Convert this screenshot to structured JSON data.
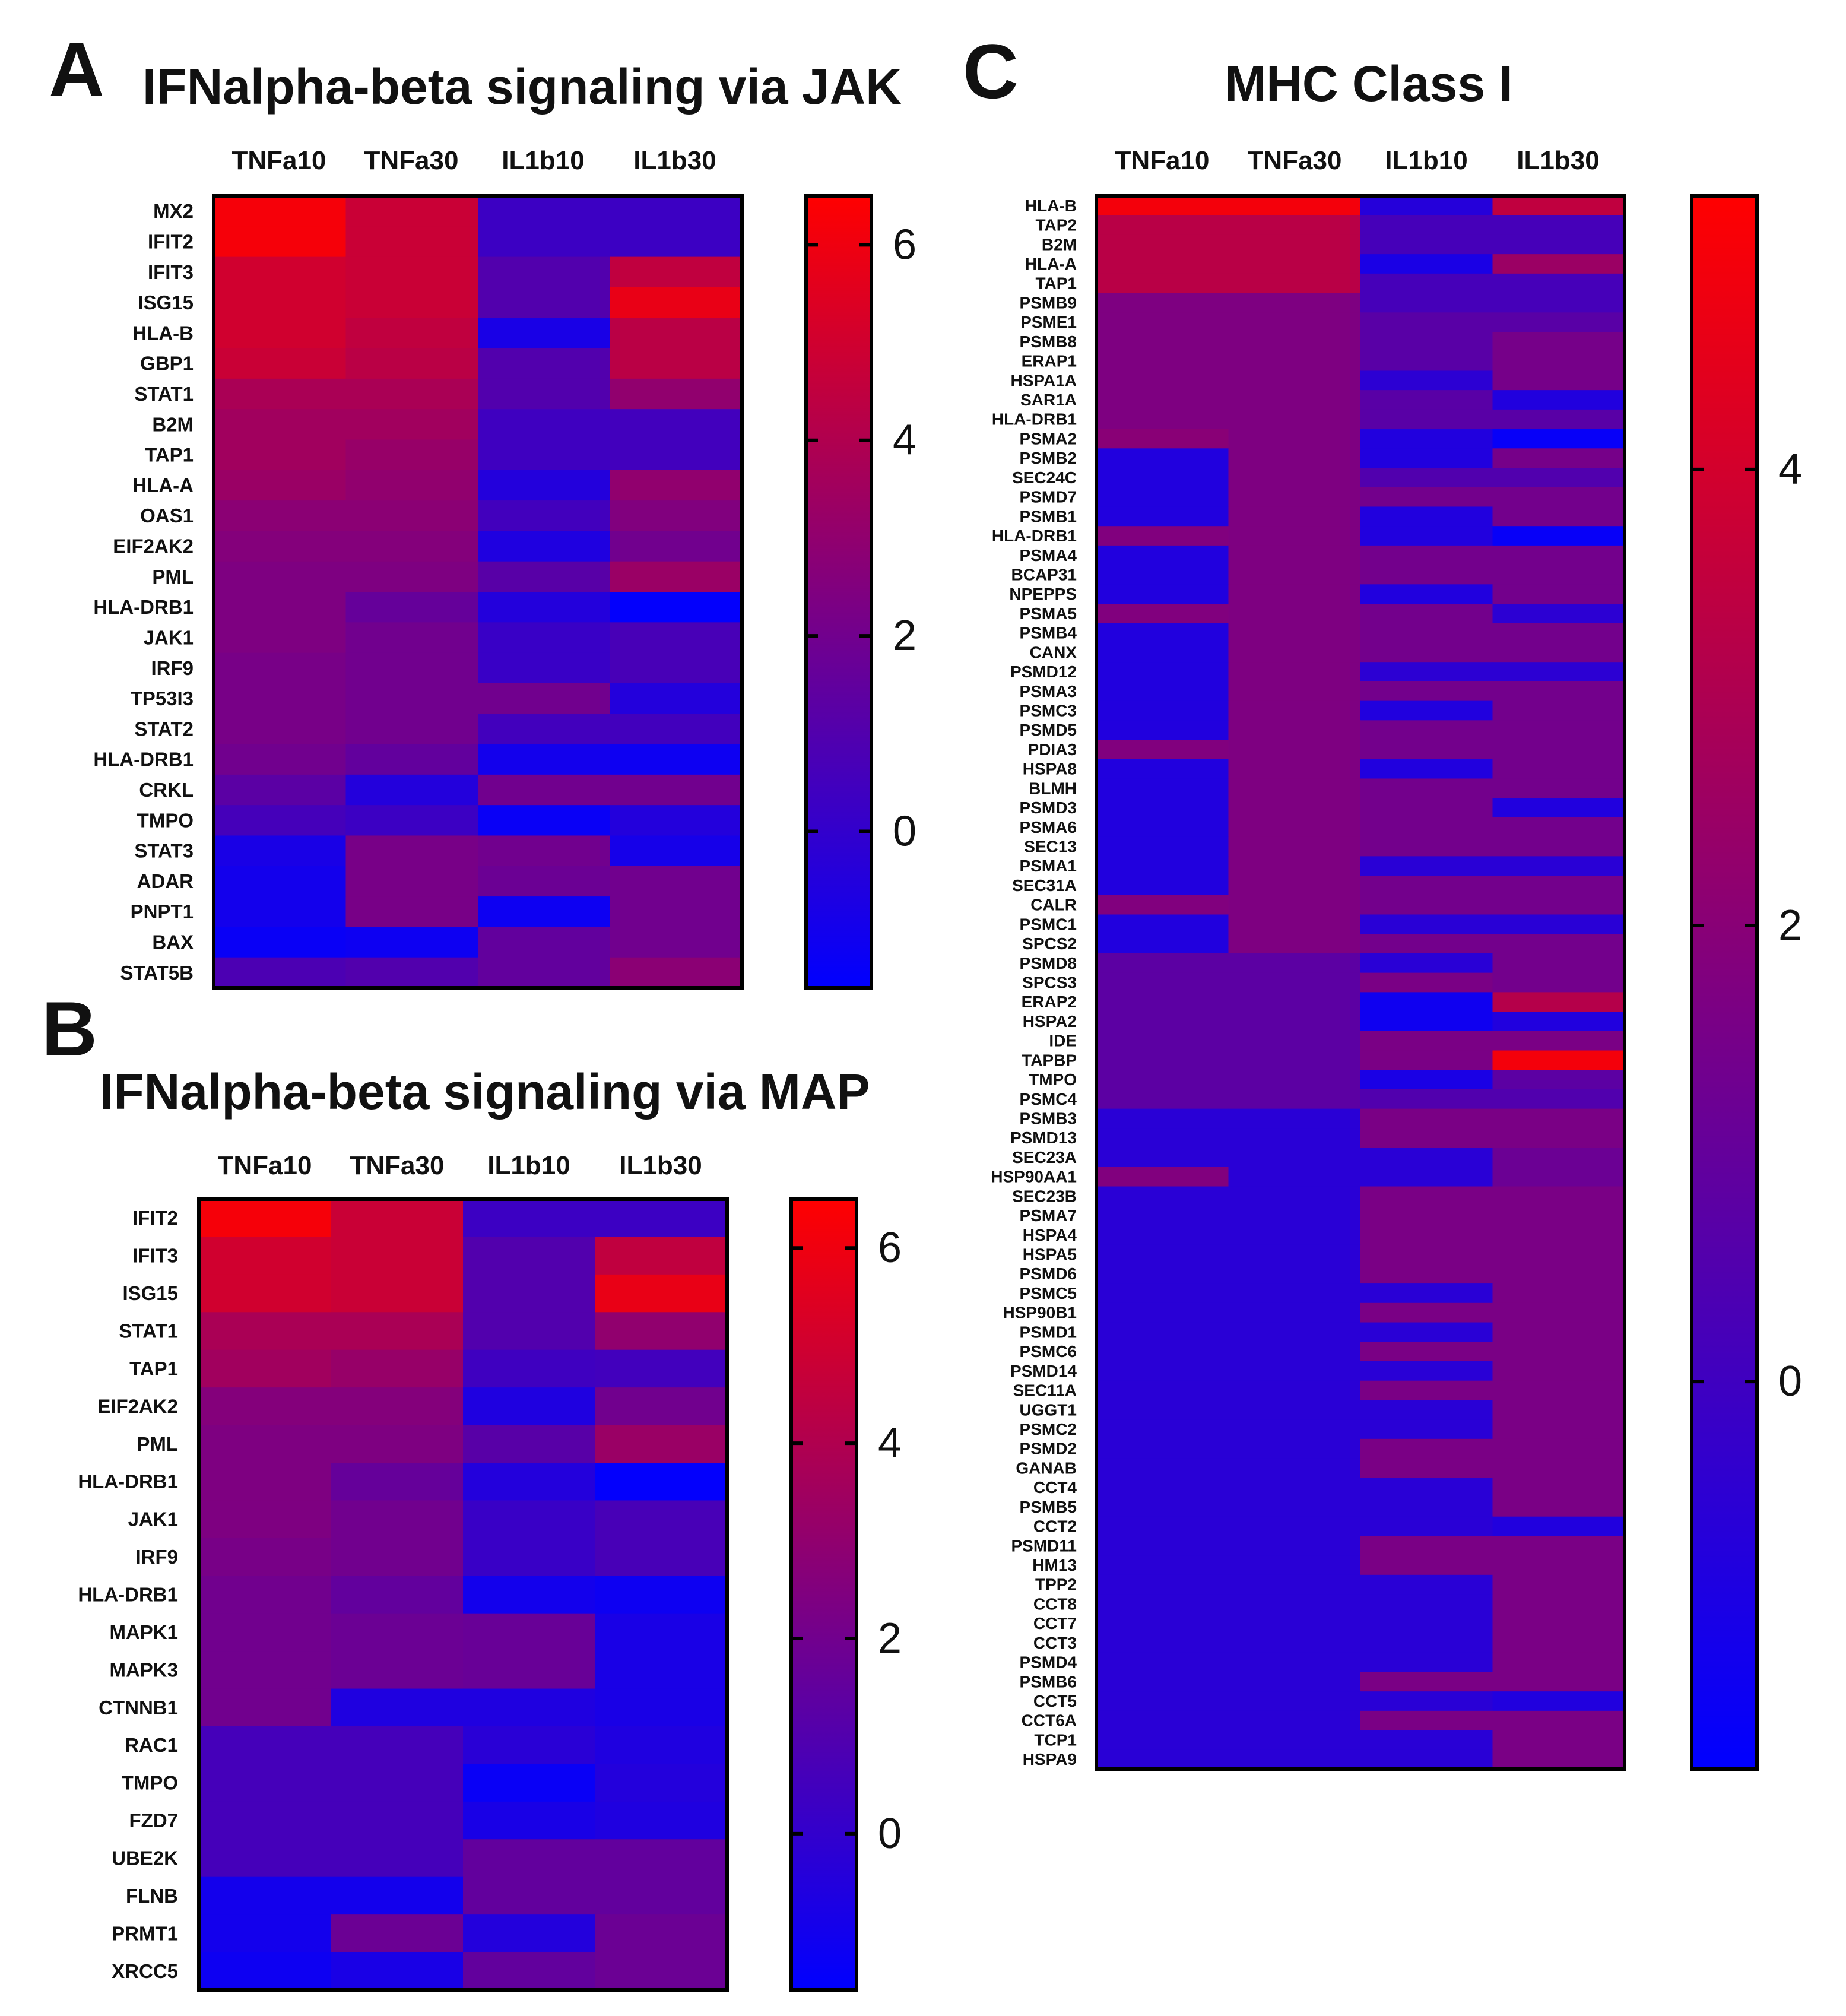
{
  "panels": {
    "a": {
      "letter": "A"
    },
    "b": {
      "letter": "B"
    },
    "c": {
      "letter": "C"
    }
  },
  "chart_data": [
    {
      "id": "a",
      "type": "heatmap",
      "title": "IFNalpha-beta signaling via JAK",
      "columns": [
        "TNFa10",
        "TNFa30",
        "IL1b10",
        "IL1b30"
      ],
      "rows": [
        "MX2",
        "IFIT2",
        "IFIT3",
        "ISG15",
        "HLA-B",
        "GBP1",
        "STAT1",
        "B2M",
        "TAP1",
        "HLA-A",
        "OAS1",
        "EIF2AK2",
        "PML",
        "HLA-DRB1",
        "JAK1",
        "IRF9",
        "TP53I3",
        "STAT2",
        "HLA-DRB1",
        "CRKL",
        "TMPO",
        "STAT3",
        "ADAR",
        "PNPT1",
        "BAX",
        "STAT5B"
      ],
      "values": [
        [
          6.2,
          4.8,
          0.3,
          0.3
        ],
        [
          6.2,
          4.8,
          0.3,
          0.3
        ],
        [
          5.0,
          4.8,
          1.0,
          4.5
        ],
        [
          5.0,
          4.8,
          1.0,
          5.8
        ],
        [
          5.0,
          4.5,
          -0.8,
          4.3
        ],
        [
          4.8,
          4.3,
          1.0,
          4.3
        ],
        [
          3.8,
          3.8,
          1.0,
          3.0
        ],
        [
          3.5,
          3.5,
          0.4,
          0.5
        ],
        [
          3.5,
          3.2,
          0.4,
          0.5
        ],
        [
          3.3,
          3.0,
          -0.5,
          3.0
        ],
        [
          2.8,
          2.8,
          0.5,
          2.5
        ],
        [
          2.6,
          2.6,
          -0.6,
          2.0
        ],
        [
          2.4,
          2.4,
          1.2,
          3.3
        ],
        [
          2.4,
          1.6,
          -0.5,
          -1.5
        ],
        [
          2.4,
          2.0,
          0.2,
          0.7
        ],
        [
          2.2,
          2.0,
          0.2,
          0.7
        ],
        [
          2.2,
          2.0,
          2.0,
          -0.5
        ],
        [
          2.2,
          2.0,
          0.5,
          0.5
        ],
        [
          2.0,
          1.5,
          -1.0,
          -1.2
        ],
        [
          1.3,
          -0.5,
          2.0,
          2.0
        ],
        [
          0.6,
          0.3,
          -1.3,
          -0.5
        ],
        [
          -0.8,
          2.2,
          2.0,
          -0.9
        ],
        [
          -1.0,
          2.2,
          1.8,
          2.0
        ],
        [
          -1.0,
          2.2,
          -1.2,
          2.0
        ],
        [
          -1.3,
          -1.2,
          1.5,
          2.0
        ],
        [
          0.8,
          1.0,
          1.5,
          2.8
        ]
      ],
      "colorbar": {
        "min": -1.6,
        "max": 6.5,
        "ticks": [
          0,
          2,
          4,
          6
        ]
      }
    },
    {
      "id": "b",
      "type": "heatmap",
      "title": "IFNalpha-beta signaling via MAP",
      "columns": [
        "TNFa10",
        "TNFa30",
        "IL1b10",
        "IL1b30"
      ],
      "rows": [
        "IFIT2",
        "IFIT3",
        "ISG15",
        "STAT1",
        "TAP1",
        "EIF2AK2",
        "PML",
        "HLA-DRB1",
        "JAK1",
        "IRF9",
        "HLA-DRB1",
        "MAPK1",
        "MAPK3",
        "CTNNB1",
        "RAC1",
        "TMPO",
        "FZD7",
        "UBE2K",
        "FLNB",
        "PRMT1",
        "XRCC5"
      ],
      "values": [
        [
          6.2,
          4.8,
          0.3,
          0.3
        ],
        [
          5.0,
          4.8,
          1.0,
          4.5
        ],
        [
          5.0,
          4.8,
          1.0,
          5.8
        ],
        [
          3.8,
          3.8,
          1.0,
          3.0
        ],
        [
          3.5,
          3.2,
          0.4,
          0.5
        ],
        [
          2.6,
          2.6,
          -0.6,
          2.0
        ],
        [
          2.4,
          2.4,
          1.2,
          3.3
        ],
        [
          2.4,
          1.6,
          -0.5,
          -1.5
        ],
        [
          2.4,
          2.0,
          0.2,
          0.7
        ],
        [
          2.2,
          2.0,
          0.2,
          0.7
        ],
        [
          2.0,
          1.5,
          -1.0,
          -1.2
        ],
        [
          2.0,
          1.8,
          1.7,
          -0.8
        ],
        [
          2.0,
          1.8,
          1.7,
          -0.8
        ],
        [
          2.0,
          -0.6,
          -0.6,
          -0.8
        ],
        [
          0.6,
          0.6,
          -0.3,
          -0.6
        ],
        [
          0.6,
          0.6,
          -1.3,
          -0.5
        ],
        [
          0.6,
          0.6,
          -0.8,
          -0.6
        ],
        [
          0.6,
          0.6,
          1.5,
          1.5
        ],
        [
          -1.0,
          -1.0,
          1.5,
          1.5
        ],
        [
          -1.0,
          1.8,
          -0.5,
          1.8
        ],
        [
          -1.2,
          -0.8,
          1.5,
          1.8
        ]
      ],
      "colorbar": {
        "min": -1.6,
        "max": 6.5,
        "ticks": [
          0,
          2,
          4,
          6
        ]
      }
    },
    {
      "id": "c",
      "type": "heatmap",
      "title": "MHC Class I",
      "columns": [
        "TNFa10",
        "TNFa30",
        "IL1b10",
        "IL1b30"
      ],
      "rows": [
        "HLA-B",
        "TAP2",
        "B2M",
        "HLA-A",
        "TAP1",
        "PSMB9",
        "PSME1",
        "PSMB8",
        "ERAP1",
        "HSPA1A",
        "SAR1A",
        "HLA-DRB1",
        "PSMA2",
        "PSMB2",
        "SEC24C",
        "PSMD7",
        "PSMB1",
        "HLA-DRB1",
        "PSMA4",
        "BCAP31",
        "NPEPPS",
        "PSMA5",
        "PSMB4",
        "CANX",
        "PSMD12",
        "PSMA3",
        "PSMC3",
        "PSMD5",
        "PDIA3",
        "HSPA8",
        "BLMH",
        "PSMD3",
        "PSMA6",
        "SEC13",
        "PSMA1",
        "SEC31A",
        "CALR",
        "PSMC1",
        "SPCS2",
        "PSMD8",
        "SPCS3",
        "ERAP2",
        "HSPA2",
        "IDE",
        "TAPBP",
        "TMPO",
        "PSMC4",
        "PSMB3",
        "PSMD13",
        "SEC23A",
        "HSP90AA1",
        "SEC23B",
        "PSMA7",
        "HSPA4",
        "HSPA5",
        "PSMD6",
        "PSMC5",
        "HSP90B1",
        "PSMD1",
        "PSMC6",
        "PSMD14",
        "SEC11A",
        "UGGT1",
        "PSMC2",
        "PSMD2",
        "GANAB",
        "CCT4",
        "PSMB5",
        "CCT2",
        "PSMD11",
        "HM13",
        "TPP2",
        "CCT8",
        "CCT7",
        "CCT3",
        "PSMD4",
        "PSMB6",
        "CCT5",
        "CCT6A",
        "TCP1",
        "HSPA9"
      ],
      "values": [
        [
          4.9,
          4.9,
          -0.7,
          3.5
        ],
        [
          3.3,
          3.3,
          0.2,
          0.2
        ],
        [
          3.3,
          3.3,
          0.2,
          0.2
        ],
        [
          3.3,
          3.3,
          -1.0,
          2.5
        ],
        [
          3.3,
          3.3,
          0.2,
          0.2
        ],
        [
          1.7,
          1.7,
          0.2,
          0.2
        ],
        [
          1.7,
          1.7,
          0.7,
          0.7
        ],
        [
          1.7,
          1.7,
          0.7,
          1.5
        ],
        [
          1.7,
          1.7,
          0.7,
          1.5
        ],
        [
          1.7,
          1.7,
          -0.5,
          1.5
        ],
        [
          1.7,
          1.7,
          0.7,
          -0.8
        ],
        [
          1.7,
          1.7,
          0.7,
          0.7
        ],
        [
          2.0,
          1.7,
          -0.8,
          -1.5
        ],
        [
          -0.8,
          1.7,
          -0.8,
          1.5
        ],
        [
          -0.8,
          1.7,
          0.5,
          0.5
        ],
        [
          -0.8,
          1.7,
          1.4,
          1.4
        ],
        [
          -0.8,
          1.7,
          -0.8,
          1.4
        ],
        [
          1.8,
          1.7,
          -0.8,
          -1.5
        ],
        [
          -0.8,
          1.7,
          1.4,
          1.4
        ],
        [
          -0.8,
          1.7,
          1.4,
          1.4
        ],
        [
          -0.8,
          1.7,
          -0.8,
          1.4
        ],
        [
          1.8,
          1.7,
          1.4,
          -0.5
        ],
        [
          -0.8,
          1.7,
          1.4,
          1.4
        ],
        [
          -0.8,
          1.7,
          1.4,
          1.4
        ],
        [
          -0.8,
          1.7,
          -0.5,
          -0.5
        ],
        [
          -0.8,
          1.7,
          1.4,
          1.4
        ],
        [
          -0.8,
          1.7,
          -0.8,
          1.4
        ],
        [
          -0.8,
          1.7,
          1.4,
          1.4
        ],
        [
          1.8,
          1.7,
          1.4,
          1.4
        ],
        [
          -0.8,
          1.7,
          -0.8,
          1.4
        ],
        [
          -0.8,
          1.7,
          1.4,
          1.4
        ],
        [
          -0.8,
          1.7,
          1.4,
          -0.8
        ],
        [
          -0.8,
          1.7,
          1.4,
          1.4
        ],
        [
          -0.8,
          1.7,
          1.4,
          1.4
        ],
        [
          -0.8,
          1.7,
          -0.6,
          -0.6
        ],
        [
          -0.8,
          1.7,
          1.4,
          1.4
        ],
        [
          1.8,
          1.7,
          1.4,
          1.4
        ],
        [
          -0.8,
          1.7,
          -0.6,
          -0.6
        ],
        [
          -0.8,
          1.7,
          1.4,
          1.4
        ],
        [
          0.8,
          0.8,
          -0.6,
          1.4
        ],
        [
          0.8,
          0.8,
          1.6,
          1.4
        ],
        [
          0.8,
          0.8,
          -1.3,
          3.2
        ],
        [
          0.8,
          0.8,
          -1.3,
          -0.8
        ],
        [
          0.8,
          0.8,
          1.6,
          1.6
        ],
        [
          0.8,
          0.8,
          1.6,
          4.9
        ],
        [
          0.8,
          0.8,
          -1.0,
          0.8
        ],
        [
          0.8,
          0.8,
          0.5,
          0.5
        ],
        [
          -0.6,
          -0.6,
          1.6,
          1.6
        ],
        [
          -0.6,
          -0.6,
          1.6,
          1.6
        ],
        [
          -0.6,
          -0.6,
          -0.6,
          1.2
        ],
        [
          1.8,
          -0.6,
          -0.6,
          1.2
        ],
        [
          -0.6,
          -0.6,
          1.6,
          1.6
        ],
        [
          -0.6,
          -0.6,
          1.6,
          1.6
        ],
        [
          -0.6,
          -0.6,
          1.6,
          1.6
        ],
        [
          -0.6,
          -0.6,
          1.6,
          1.6
        ],
        [
          -0.6,
          -0.6,
          1.6,
          1.6
        ],
        [
          -0.6,
          -0.6,
          -0.6,
          1.6
        ],
        [
          -0.6,
          -0.6,
          1.6,
          1.6
        ],
        [
          -0.6,
          -0.6,
          -0.6,
          1.6
        ],
        [
          -0.6,
          -0.6,
          1.6,
          1.6
        ],
        [
          -0.6,
          -0.6,
          -0.6,
          1.6
        ],
        [
          -0.6,
          -0.6,
          1.6,
          1.6
        ],
        [
          -0.6,
          -0.6,
          -0.6,
          1.6
        ],
        [
          -0.6,
          -0.6,
          -0.6,
          1.6
        ],
        [
          -0.6,
          -0.6,
          1.6,
          1.6
        ],
        [
          -0.6,
          -0.6,
          1.6,
          1.6
        ],
        [
          -0.6,
          -0.6,
          -0.6,
          1.6
        ],
        [
          -0.6,
          -0.6,
          -0.6,
          1.6
        ],
        [
          -0.6,
          -0.6,
          -0.6,
          -0.8
        ],
        [
          -0.6,
          -0.6,
          1.6,
          1.6
        ],
        [
          -0.6,
          -0.6,
          1.6,
          1.6
        ],
        [
          -0.6,
          -0.6,
          -0.6,
          1.6
        ],
        [
          -0.6,
          -0.6,
          -0.6,
          1.6
        ],
        [
          -0.6,
          -0.6,
          -0.6,
          1.6
        ],
        [
          -0.6,
          -0.6,
          -0.6,
          1.6
        ],
        [
          -0.6,
          -0.6,
          -0.6,
          1.6
        ],
        [
          -0.6,
          -0.6,
          1.6,
          1.6
        ],
        [
          -0.6,
          -0.6,
          -0.6,
          -0.8
        ],
        [
          -0.6,
          -0.6,
          1.6,
          1.6
        ],
        [
          -0.6,
          -0.6,
          -0.6,
          1.6
        ],
        [
          -0.6,
          -0.6,
          -0.6,
          1.6
        ]
      ],
      "colorbar": {
        "min": -1.7,
        "max": 5.2,
        "ticks": [
          0,
          2,
          4
        ]
      }
    }
  ]
}
